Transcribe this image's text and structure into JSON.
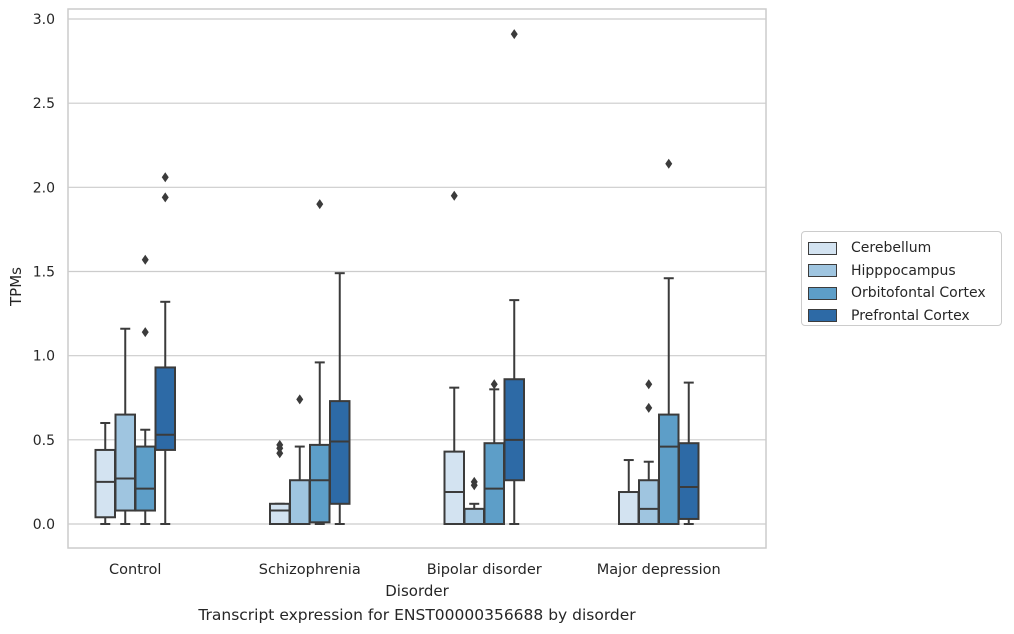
{
  "chart_data": {
    "type": "boxplot",
    "xlabel": "Disorder",
    "ylabel": "TPMs",
    "ylim": [
      -0.14,
      3.06
    ],
    "yticks": [
      "0.0",
      "0.5",
      "1.0",
      "1.5",
      "2.0",
      "2.5",
      "3.0"
    ],
    "grid": true,
    "legend_position": "right",
    "categories": [
      "Control",
      "Schizophrenia",
      "Bipolar disorder",
      "Major depression"
    ],
    "series": [
      {
        "name": "Cerebellum",
        "color": "#d3e3f1",
        "boxes": [
          {
            "whislo": 0.0,
            "q1": 0.04,
            "med": 0.25,
            "q3": 0.44,
            "whishi": 0.6,
            "fliers": []
          },
          {
            "whislo": 0.0,
            "q1": 0.0,
            "med": 0.08,
            "q3": 0.12,
            "whishi": 0.12,
            "fliers": [
              0.42,
              0.45,
              0.47
            ]
          },
          {
            "whislo": 0.0,
            "q1": 0.0,
            "med": 0.19,
            "q3": 0.43,
            "whishi": 0.81,
            "fliers": [
              1.95
            ]
          },
          {
            "whislo": 0.0,
            "q1": 0.0,
            "med": 0.0,
            "q3": 0.19,
            "whishi": 0.38,
            "fliers": []
          }
        ]
      },
      {
        "name": "Hipppocampus",
        "color": "#9fc5e0",
        "boxes": [
          {
            "whislo": 0.0,
            "q1": 0.08,
            "med": 0.27,
            "q3": 0.65,
            "whishi": 1.16,
            "fliers": []
          },
          {
            "whislo": 0.0,
            "q1": 0.0,
            "med": 0.0,
            "q3": 0.26,
            "whishi": 0.46,
            "fliers": [
              0.74
            ]
          },
          {
            "whislo": 0.0,
            "q1": 0.0,
            "med": 0.0,
            "q3": 0.09,
            "whishi": 0.12,
            "fliers": [
              0.23,
              0.25
            ]
          },
          {
            "whislo": 0.0,
            "q1": 0.0,
            "med": 0.09,
            "q3": 0.26,
            "whishi": 0.37,
            "fliers": [
              0.69,
              0.83
            ]
          }
        ]
      },
      {
        "name": "Orbitofontal Cortex",
        "color": "#5d9ec8",
        "boxes": [
          {
            "whislo": 0.0,
            "q1": 0.08,
            "med": 0.21,
            "q3": 0.46,
            "whishi": 0.56,
            "fliers": [
              1.14,
              1.57
            ]
          },
          {
            "whislo": 0.0,
            "q1": 0.01,
            "med": 0.26,
            "q3": 0.47,
            "whishi": 0.96,
            "fliers": [
              1.9
            ]
          },
          {
            "whislo": 0.0,
            "q1": 0.0,
            "med": 0.21,
            "q3": 0.48,
            "whishi": 0.8,
            "fliers": [
              0.83
            ]
          },
          {
            "whislo": 0.0,
            "q1": 0.0,
            "med": 0.46,
            "q3": 0.65,
            "whishi": 1.46,
            "fliers": [
              2.14
            ]
          }
        ]
      },
      {
        "name": "Prefrontal Cortex",
        "color": "#2d6aa6",
        "boxes": [
          {
            "whislo": 0.0,
            "q1": 0.44,
            "med": 0.53,
            "q3": 0.93,
            "whishi": 1.32,
            "fliers": [
              1.94,
              2.06
            ]
          },
          {
            "whislo": 0.0,
            "q1": 0.12,
            "med": 0.49,
            "q3": 0.73,
            "whishi": 1.49,
            "fliers": []
          },
          {
            "whislo": 0.0,
            "q1": 0.26,
            "med": 0.5,
            "q3": 0.86,
            "whishi": 1.33,
            "fliers": [
              2.91
            ]
          },
          {
            "whislo": 0.0,
            "q1": 0.03,
            "med": 0.22,
            "q3": 0.48,
            "whishi": 0.84,
            "fliers": []
          }
        ]
      }
    ]
  },
  "caption": "Transcript expression for ENST00000356688 by disorder"
}
